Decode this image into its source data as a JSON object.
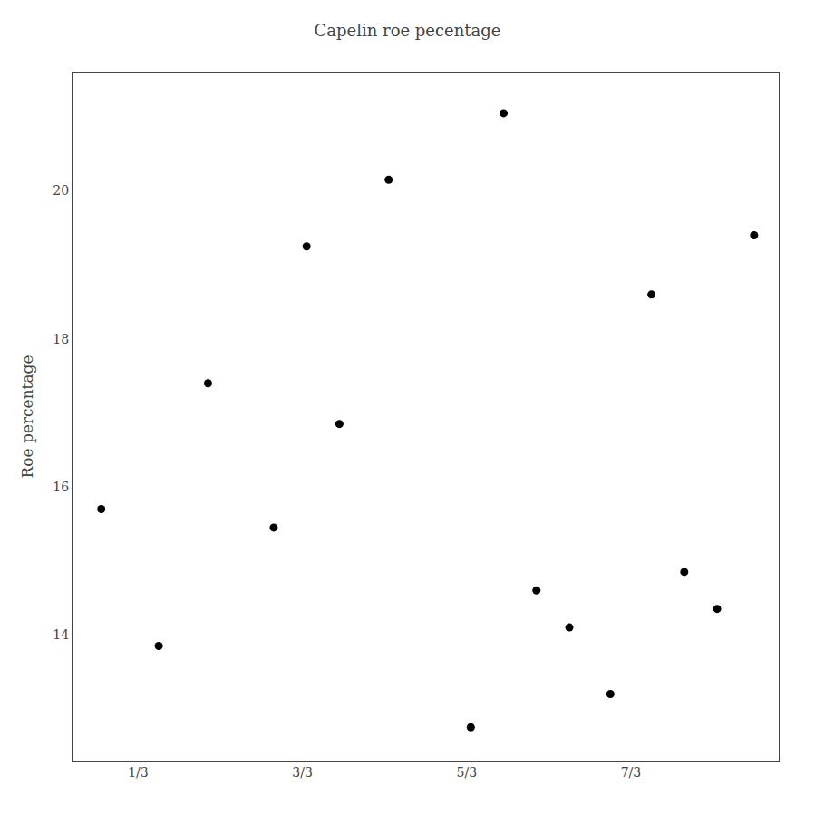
{
  "chart_data": {
    "type": "scatter",
    "title": "Capelin roe pecentage",
    "ylabel": "Roe percentage",
    "x": [
      0.55,
      1.25,
      1.85,
      2.65,
      3.05,
      3.45,
      4.05,
      5.05,
      5.45,
      5.85,
      6.25,
      6.75,
      7.25,
      7.65,
      8.05,
      8.5
    ],
    "values": [
      15.7,
      13.85,
      17.4,
      15.45,
      19.25,
      16.85,
      20.15,
      12.75,
      21.05,
      14.6,
      14.1,
      13.2,
      18.6,
      14.85,
      14.35,
      19.4
    ],
    "color": "#000000",
    "xlim": [
      0.2,
      8.8
    ],
    "xticks": [
      {
        "value": 1,
        "label": "1/3"
      },
      {
        "value": 3,
        "label": "3/3"
      },
      {
        "value": 5,
        "label": "5/3"
      },
      {
        "value": 7,
        "label": "7/3"
      }
    ],
    "ylim": [
      12.3,
      21.6
    ],
    "yticks": [
      14,
      16,
      18,
      20
    ],
    "grid": false
  }
}
